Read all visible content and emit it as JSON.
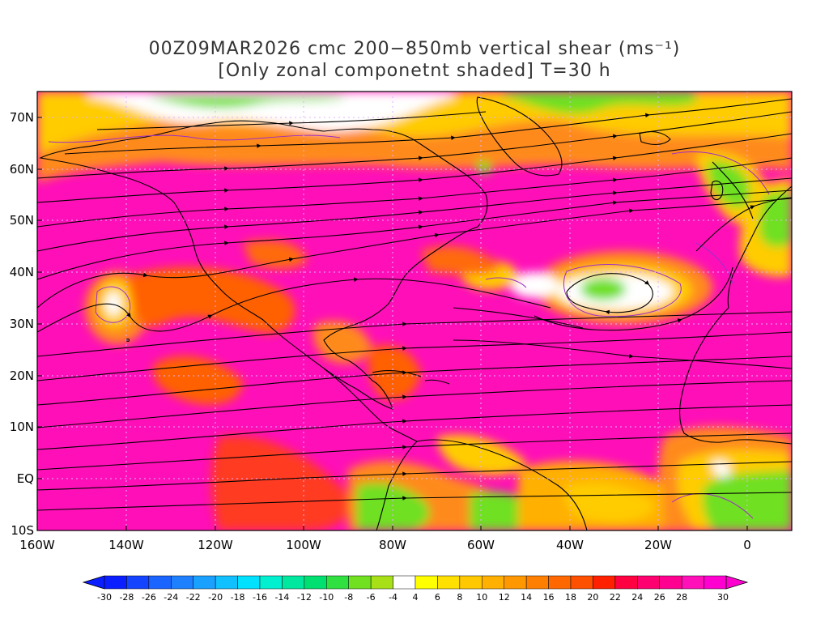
{
  "title": {
    "line1": "00Z09MAR2026 cmc 200−850mb vertical shear (ms⁻¹)",
    "line2": "[Only zonal componetnt shaded] T=30 h"
  },
  "map": {
    "lat_labels": [
      "70N",
      "60N",
      "50N",
      "40N",
      "30N",
      "20N",
      "10N",
      "EQ",
      "10S"
    ],
    "lon_labels": [
      "160W",
      "140W",
      "120W",
      "100W",
      "80W",
      "60W",
      "40W",
      "20W",
      "0"
    ],
    "lat_range": [
      -10,
      75
    ],
    "lon_range": [
      -160,
      10
    ]
  },
  "colorbar": {
    "labels": [
      "-30",
      "-28",
      "-26",
      "-24",
      "-22",
      "-20",
      "-18",
      "-16",
      "-14",
      "-12",
      "-10",
      "-8",
      "-6",
      "-4",
      "4",
      "6",
      "8",
      "10",
      "12",
      "14",
      "16",
      "18",
      "20",
      "22",
      "24",
      "26",
      "28",
      "30"
    ],
    "colors": [
      "#0a1eff",
      "#1444ff",
      "#1a64ff",
      "#1e80ff",
      "#1aa0ff",
      "#10c0ff",
      "#00e0ff",
      "#00f0d0",
      "#00e8a0",
      "#00e070",
      "#30e040",
      "#70e020",
      "#a8e018",
      "#ffffff",
      "#ffff00",
      "#ffe000",
      "#ffc800",
      "#ffb000",
      "#ff9800",
      "#ff8000",
      "#ff6800",
      "#ff5000",
      "#ff2000",
      "#ff0040",
      "#ff0070",
      "#ff0090",
      "#ff10b8",
      "#ff00d0"
    ]
  }
}
